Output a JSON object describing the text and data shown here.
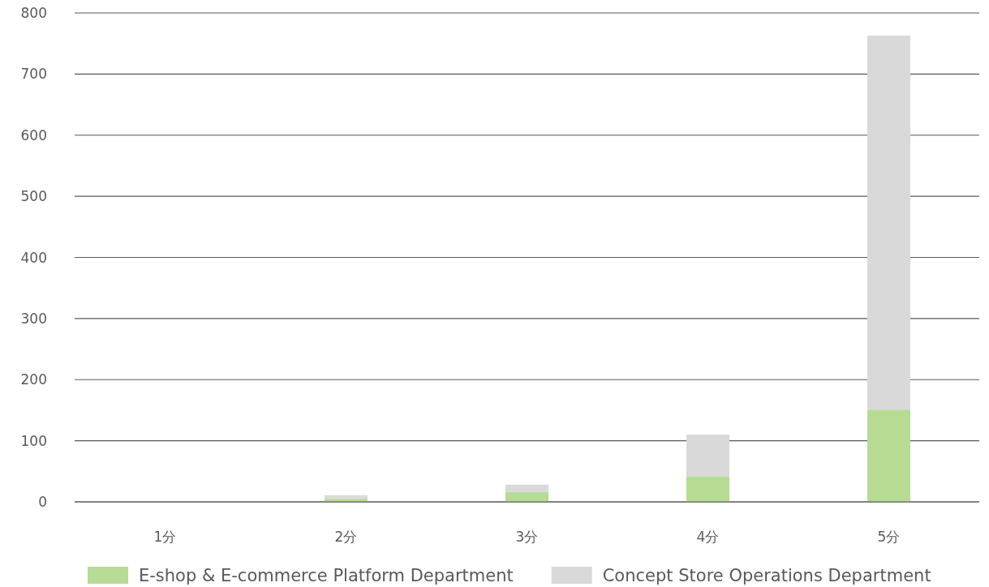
{
  "chart_data": {
    "type": "bar",
    "stacked": true,
    "categories": [
      "1分",
      "2分",
      "3分",
      "4分",
      "5分"
    ],
    "series": [
      {
        "name": "E-shop & E-commerce Platform Department",
        "color": "#b6dc94",
        "values": [
          0,
          5,
          16,
          42,
          151
        ]
      },
      {
        "name": "Concept Store Operations Department",
        "color": "#d9d9d9",
        "values": [
          0,
          6,
          12,
          68,
          612
        ]
      }
    ],
    "ylim": [
      0,
      800
    ],
    "yticks": [
      0,
      100,
      200,
      300,
      400,
      500,
      600,
      700,
      800
    ],
    "grid": "y",
    "legend": "bottom"
  }
}
